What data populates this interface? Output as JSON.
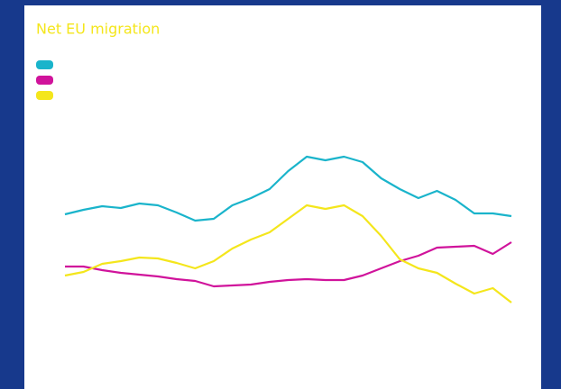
{
  "chart_data": {
    "type": "line",
    "title": "Net EU migration",
    "series": [
      {
        "color": "#1ab4cb",
        "values": [
          162,
          167,
          171,
          169,
          174,
          172,
          164,
          155,
          157,
          172,
          180,
          190,
          210,
          226,
          222,
          226,
          220,
          202,
          190,
          180,
          188,
          178,
          163,
          163,
          160
        ]
      },
      {
        "color": "#d0139b",
        "values": [
          104,
          104,
          100,
          97,
          95,
          93,
          90,
          88,
          82,
          83,
          84,
          87,
          89,
          90,
          89,
          89,
          94,
          102,
          110,
          116,
          125,
          126,
          127,
          118,
          131
        ]
      },
      {
        "color": "#f4e61c",
        "values": [
          94,
          98,
          107,
          110,
          114,
          113,
          108,
          102,
          110,
          124,
          134,
          142,
          157,
          172,
          168,
          172,
          160,
          138,
          112,
          102,
          97,
          85,
          74,
          80,
          64
        ]
      }
    ]
  }
}
